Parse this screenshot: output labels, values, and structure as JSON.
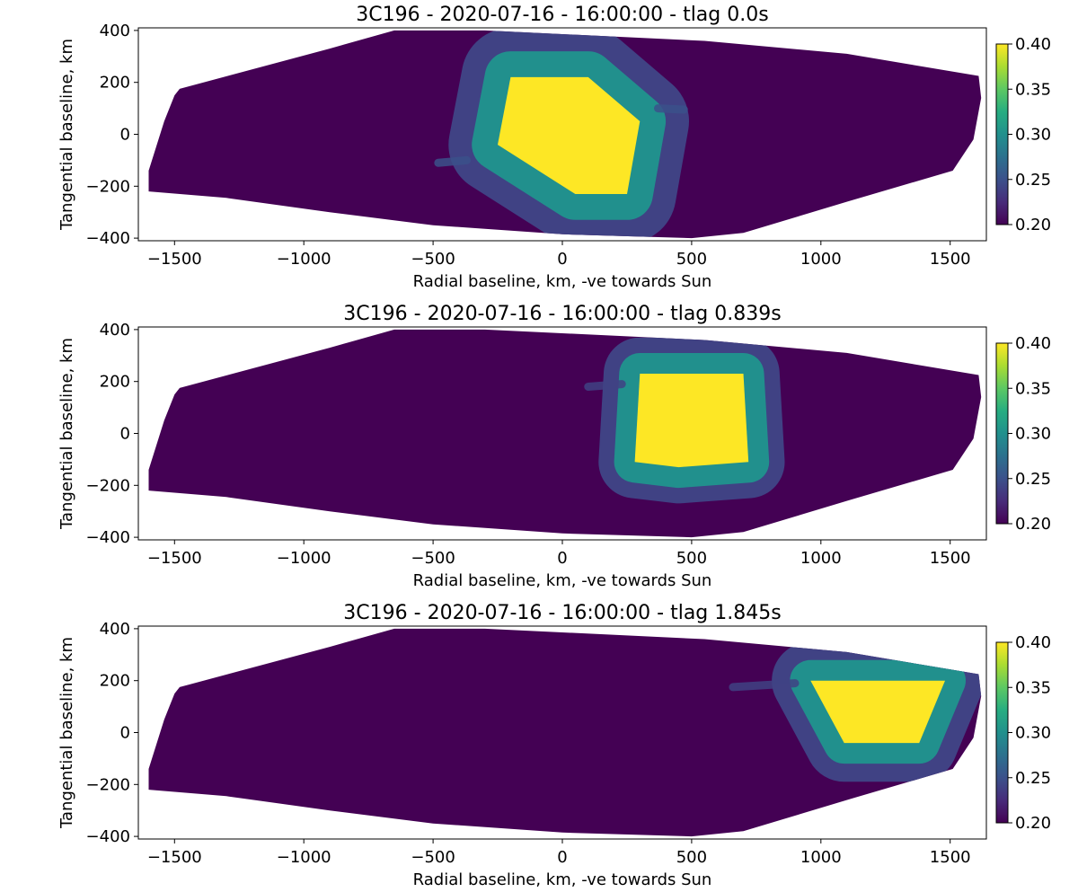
{
  "chart_data": [
    {
      "type": "heatmap",
      "title": "3C196 - 2020-07-16 - 16:00:00 - tlag 0.0s",
      "xlabel": "Radial baseline, km, -ve towards Sun",
      "ylabel": "Tangential baseline, km",
      "xlim": [
        -1640,
        1640
      ],
      "ylim": [
        -410,
        410
      ],
      "xticks": [
        -1500,
        -1000,
        -500,
        0,
        500,
        1000,
        1500
      ],
      "yticks": [
        -400,
        -200,
        0,
        200,
        400
      ],
      "colorbar": {
        "colormap": "viridis",
        "vmin": 0.2,
        "vmax": 0.4,
        "ticks": [
          0.2,
          0.25,
          0.3,
          0.35,
          0.4
        ]
      },
      "background_value": 0.2,
      "coverage_polygon": [
        [
          -1600,
          -220
        ],
        [
          -1600,
          -140
        ],
        [
          -1540,
          50
        ],
        [
          -1500,
          150
        ],
        [
          -1480,
          175
        ],
        [
          -900,
          330
        ],
        [
          -650,
          400
        ],
        [
          -300,
          400
        ],
        [
          550,
          360
        ],
        [
          1100,
          310
        ],
        [
          1610,
          225
        ],
        [
          1620,
          140
        ],
        [
          1590,
          -20
        ],
        [
          1510,
          -140
        ],
        [
          1100,
          -260
        ],
        [
          700,
          -380
        ],
        [
          500,
          -400
        ],
        [
          0,
          -385
        ],
        [
          -500,
          -350
        ],
        [
          -900,
          -300
        ],
        [
          -1300,
          -245
        ]
      ],
      "feature": {
        "core_polygon": [
          [
            -200,
            220
          ],
          [
            100,
            220
          ],
          [
            300,
            50
          ],
          [
            250,
            -230
          ],
          [
            50,
            -230
          ],
          [
            -250,
            -40
          ]
        ],
        "core_value": 0.4,
        "halo_width_km": 100,
        "halo_value": 0.3,
        "outer_width_km": 190,
        "outer_value": 0.24,
        "streaks": [
          {
            "from": [
              -370,
              -100
            ],
            "to": [
              -480,
              -110
            ],
            "value": 0.25
          },
          {
            "from": [
              370,
              100
            ],
            "to": [
              470,
              95
            ],
            "value": 0.25
          }
        ]
      }
    },
    {
      "type": "heatmap",
      "title": "3C196 - 2020-07-16 - 16:00:00 - tlag 0.839s",
      "xlabel": "Radial baseline, km, -ve towards Sun",
      "ylabel": "Tangential baseline, km",
      "xlim": [
        -1640,
        1640
      ],
      "ylim": [
        -410,
        410
      ],
      "xticks": [
        -1500,
        -1000,
        -500,
        0,
        500,
        1000,
        1500
      ],
      "yticks": [
        -400,
        -200,
        0,
        200,
        400
      ],
      "colorbar": {
        "colormap": "viridis",
        "vmin": 0.2,
        "vmax": 0.4,
        "ticks": [
          0.2,
          0.25,
          0.3,
          0.35,
          0.4
        ]
      },
      "background_value": 0.2,
      "coverage_polygon": [
        [
          -1600,
          -220
        ],
        [
          -1600,
          -140
        ],
        [
          -1540,
          50
        ],
        [
          -1500,
          150
        ],
        [
          -1480,
          175
        ],
        [
          -900,
          330
        ],
        [
          -650,
          400
        ],
        [
          -300,
          400
        ],
        [
          550,
          360
        ],
        [
          1100,
          310
        ],
        [
          1610,
          225
        ],
        [
          1620,
          140
        ],
        [
          1590,
          -20
        ],
        [
          1510,
          -140
        ],
        [
          1100,
          -260
        ],
        [
          700,
          -380
        ],
        [
          500,
          -400
        ],
        [
          0,
          -385
        ],
        [
          -500,
          -350
        ],
        [
          -900,
          -300
        ],
        [
          -1300,
          -245
        ]
      ],
      "feature": {
        "core_polygon": [
          [
            300,
            230
          ],
          [
            700,
            230
          ],
          [
            720,
            -110
          ],
          [
            450,
            -130
          ],
          [
            280,
            -110
          ]
        ],
        "core_value": 0.4,
        "halo_width_km": 80,
        "halo_value": 0.3,
        "outer_width_km": 140,
        "outer_value": 0.24,
        "streaks": [
          {
            "from": [
              230,
              190
            ],
            "to": [
              100,
              180
            ],
            "value": 0.24
          }
        ]
      }
    },
    {
      "type": "heatmap",
      "title": "3C196 - 2020-07-16 - 16:00:00 - tlag 1.845s",
      "xlabel": "Radial baseline, km, -ve towards Sun",
      "ylabel": "Tangential baseline, km",
      "xlim": [
        -1640,
        1640
      ],
      "ylim": [
        -410,
        410
      ],
      "xticks": [
        -1500,
        -1000,
        -500,
        0,
        500,
        1000,
        1500
      ],
      "yticks": [
        -400,
        -200,
        0,
        200,
        400
      ],
      "colorbar": {
        "colormap": "viridis",
        "vmin": 0.2,
        "vmax": 0.4,
        "ticks": [
          0.2,
          0.25,
          0.3,
          0.35,
          0.4
        ]
      },
      "background_value": 0.2,
      "coverage_polygon": [
        [
          -1600,
          -220
        ],
        [
          -1600,
          -140
        ],
        [
          -1540,
          50
        ],
        [
          -1500,
          150
        ],
        [
          -1480,
          175
        ],
        [
          -900,
          330
        ],
        [
          -650,
          400
        ],
        [
          -300,
          400
        ],
        [
          550,
          360
        ],
        [
          1100,
          310
        ],
        [
          1610,
          225
        ],
        [
          1620,
          140
        ],
        [
          1590,
          -20
        ],
        [
          1510,
          -140
        ],
        [
          1100,
          -260
        ],
        [
          700,
          -380
        ],
        [
          500,
          -400
        ],
        [
          0,
          -385
        ],
        [
          -500,
          -350
        ],
        [
          -900,
          -300
        ],
        [
          -1300,
          -245
        ]
      ],
      "feature": {
        "core_polygon": [
          [
            960,
            200
          ],
          [
            1480,
            200
          ],
          [
            1380,
            -40
          ],
          [
            1090,
            -40
          ]
        ],
        "core_value": 0.4,
        "halo_width_km": 80,
        "halo_value": 0.3,
        "outer_width_km": 150,
        "outer_value": 0.24,
        "streaks": [
          {
            "from": [
              900,
              190
            ],
            "to": [
              660,
              175
            ],
            "value": 0.24
          }
        ]
      }
    }
  ]
}
